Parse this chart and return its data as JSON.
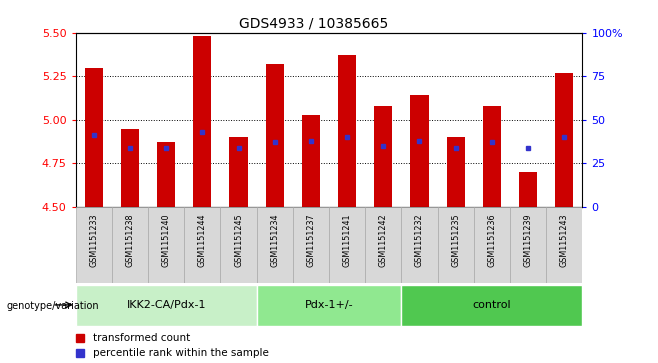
{
  "title": "GDS4933 / 10385665",
  "samples": [
    "GSM1151233",
    "GSM1151238",
    "GSM1151240",
    "GSM1151244",
    "GSM1151245",
    "GSM1151234",
    "GSM1151237",
    "GSM1151241",
    "GSM1151242",
    "GSM1151232",
    "GSM1151235",
    "GSM1151236",
    "GSM1151239",
    "GSM1151243"
  ],
  "bar_values": [
    5.3,
    4.95,
    4.87,
    5.48,
    4.9,
    5.32,
    5.03,
    5.37,
    5.08,
    5.14,
    4.9,
    5.08,
    4.7,
    5.27
  ],
  "blue_values": [
    4.91,
    4.84,
    4.84,
    4.93,
    4.84,
    4.87,
    4.88,
    4.9,
    4.85,
    4.88,
    4.84,
    4.87,
    4.84,
    4.9
  ],
  "groups": [
    {
      "label": "IKK2-CA/Pdx-1",
      "start": 0,
      "end": 5,
      "color": "#c8f0c8"
    },
    {
      "label": "Pdx-1+/-",
      "start": 5,
      "end": 9,
      "color": "#90e890"
    },
    {
      "label": "control",
      "start": 9,
      "end": 14,
      "color": "#50c850"
    }
  ],
  "ylim": [
    4.5,
    5.5
  ],
  "yticks": [
    4.5,
    4.75,
    5.0,
    5.25,
    5.5
  ],
  "right_yticks": [
    0,
    25,
    50,
    75,
    100
  ],
  "bar_color": "#cc0000",
  "blue_color": "#3333cc",
  "bar_width": 0.5,
  "background_color": "#ffffff",
  "legend_items": [
    "transformed count",
    "percentile rank within the sample"
  ]
}
